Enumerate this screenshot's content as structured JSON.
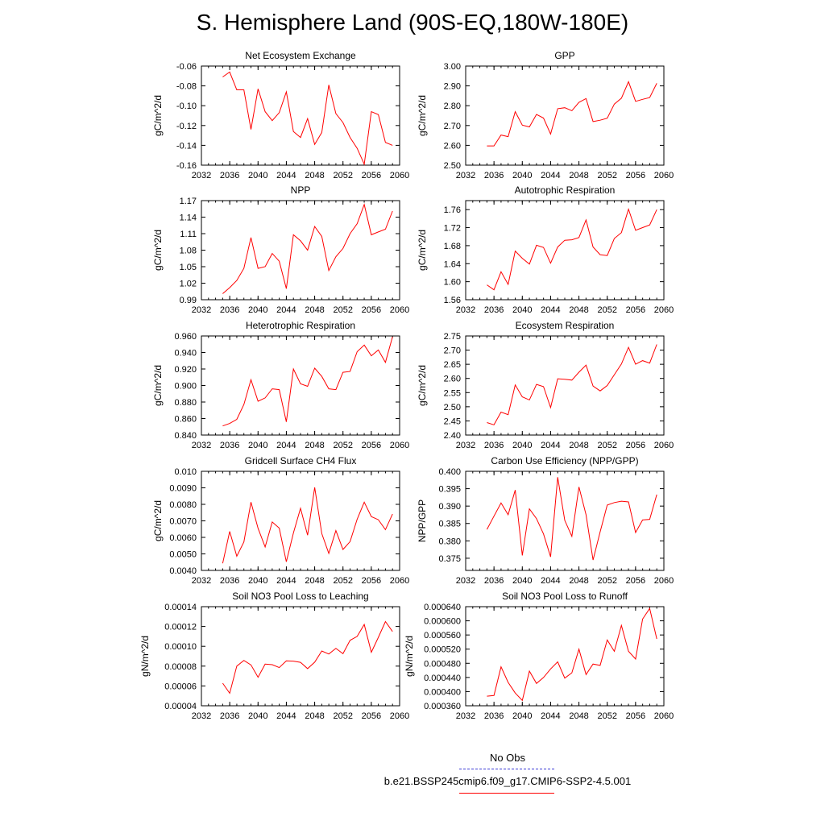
{
  "title": "S. Hemisphere Land (90S-EQ,180W-180E)",
  "legend": {
    "obs_label": "No Obs",
    "obs_color": "#3b3bd6",
    "case_label": "b.e21.BSSP245cmip6.f09_g17.CMIP6-SSP2-4.5.001",
    "case_color": "#ff0000"
  },
  "chart_data": [
    {
      "type": "line",
      "title": "Net Ecosystem Exchange",
      "ylabel": "gC/m^2/d",
      "xlim": [
        2032,
        2060
      ],
      "ylim": [
        -0.16,
        -0.06
      ],
      "xticks": [
        "2032",
        "2036",
        "2040",
        "2044",
        "2048",
        "2052",
        "2056",
        "2060"
      ],
      "yticks": [
        "-0.06",
        "-0.08",
        "-0.10",
        "-0.12",
        "-0.14",
        "-0.16"
      ],
      "x": [
        2035,
        2036,
        2037,
        2038,
        2039,
        2040,
        2041,
        2042,
        2043,
        2044,
        2045,
        2046,
        2047,
        2048,
        2049,
        2050,
        2051,
        2052,
        2053,
        2054,
        2055,
        2056,
        2057,
        2058,
        2059
      ],
      "series": [
        {
          "values": [
            -0.071,
            -0.066,
            -0.084,
            -0.084,
            -0.124,
            -0.083,
            -0.106,
            -0.115,
            -0.107,
            -0.086,
            -0.126,
            -0.132,
            -0.113,
            -0.139,
            -0.127,
            -0.079,
            -0.108,
            -0.117,
            -0.132,
            -0.143,
            -0.159,
            -0.106,
            -0.109,
            -0.137,
            -0.14
          ]
        }
      ]
    },
    {
      "type": "line",
      "title": "GPP",
      "ylabel": "gC/m^2/d",
      "xlim": [
        2032,
        2060
      ],
      "ylim": [
        2.5,
        3.0
      ],
      "xticks": [
        "2032",
        "2036",
        "2040",
        "2044",
        "2048",
        "2052",
        "2056",
        "2060"
      ],
      "yticks": [
        "3.00",
        "2.90",
        "2.80",
        "2.70",
        "2.60",
        "2.50"
      ],
      "x": [
        2035,
        2036,
        2037,
        2038,
        2039,
        2040,
        2041,
        2042,
        2043,
        2044,
        2045,
        2046,
        2047,
        2048,
        2049,
        2050,
        2051,
        2052,
        2053,
        2054,
        2055,
        2056,
        2057,
        2058,
        2059
      ],
      "series": [
        {
          "values": [
            2.597,
            2.597,
            2.652,
            2.644,
            2.77,
            2.702,
            2.693,
            2.756,
            2.738,
            2.657,
            2.785,
            2.79,
            2.775,
            2.817,
            2.836,
            2.72,
            2.727,
            2.737,
            2.808,
            2.838,
            2.921,
            2.822,
            2.832,
            2.841,
            2.913
          ]
        }
      ]
    },
    {
      "type": "line",
      "title": "NPP",
      "ylabel": "gC/m^2/d",
      "xlim": [
        2032,
        2060
      ],
      "ylim": [
        0.99,
        1.17
      ],
      "xticks": [
        "2032",
        "2036",
        "2040",
        "2044",
        "2048",
        "2052",
        "2056",
        "2060"
      ],
      "yticks": [
        "1.17",
        "1.14",
        "1.11",
        "1.08",
        "1.05",
        "1.02",
        "0.99"
      ],
      "x": [
        2035,
        2036,
        2037,
        2038,
        2039,
        2040,
        2041,
        2042,
        2043,
        2044,
        2045,
        2046,
        2047,
        2048,
        2049,
        2050,
        2051,
        2052,
        2053,
        2054,
        2055,
        2056,
        2057,
        2058,
        2059
      ],
      "series": [
        {
          "values": [
            1.001,
            1.012,
            1.025,
            1.047,
            1.103,
            1.047,
            1.05,
            1.074,
            1.06,
            1.01,
            1.108,
            1.097,
            1.08,
            1.123,
            1.105,
            1.043,
            1.068,
            1.083,
            1.11,
            1.128,
            1.163,
            1.108,
            1.113,
            1.118,
            1.151
          ]
        }
      ]
    },
    {
      "type": "line",
      "title": "Autotrophic Respiration",
      "ylabel": "gC/m^2/d",
      "xlim": [
        2032,
        2060
      ],
      "ylim": [
        1.56,
        1.78
      ],
      "xticks": [
        "2032",
        "2036",
        "2040",
        "2044",
        "2048",
        "2052",
        "2056",
        "2060"
      ],
      "yticks": [
        "1.76",
        "1.72",
        "1.68",
        "1.64",
        "1.60",
        "1.56"
      ],
      "x": [
        2035,
        2036,
        2037,
        2038,
        2039,
        2040,
        2041,
        2042,
        2043,
        2044,
        2045,
        2046,
        2047,
        2048,
        2049,
        2050,
        2051,
        2052,
        2053,
        2054,
        2055,
        2056,
        2057,
        2058,
        2059
      ],
      "series": [
        {
          "values": [
            1.593,
            1.582,
            1.622,
            1.594,
            1.668,
            1.652,
            1.639,
            1.681,
            1.676,
            1.641,
            1.677,
            1.692,
            1.693,
            1.698,
            1.737,
            1.677,
            1.66,
            1.658,
            1.696,
            1.709,
            1.761,
            1.714,
            1.72,
            1.726,
            1.76
          ]
        }
      ]
    },
    {
      "type": "line",
      "title": "Heterotrophic Respiration",
      "ylabel": "gC/m^2/d",
      "xlim": [
        2032,
        2060
      ],
      "ylim": [
        0.84,
        0.96
      ],
      "xticks": [
        "2032",
        "2036",
        "2040",
        "2044",
        "2048",
        "2052",
        "2056",
        "2060"
      ],
      "yticks": [
        "0.960",
        "0.940",
        "0.920",
        "0.900",
        "0.880",
        "0.860",
        "0.840"
      ],
      "x": [
        2035,
        2036,
        2037,
        2038,
        2039,
        2040,
        2041,
        2042,
        2043,
        2044,
        2045,
        2046,
        2047,
        2048,
        2049,
        2050,
        2051,
        2052,
        2053,
        2054,
        2055,
        2056,
        2057,
        2058,
        2059
      ],
      "series": [
        {
          "values": [
            0.851,
            0.854,
            0.859,
            0.877,
            0.907,
            0.881,
            0.885,
            0.896,
            0.895,
            0.856,
            0.92,
            0.902,
            0.899,
            0.921,
            0.911,
            0.896,
            0.895,
            0.916,
            0.917,
            0.941,
            0.949,
            0.936,
            0.943,
            0.928,
            0.959
          ]
        }
      ]
    },
    {
      "type": "line",
      "title": "Ecosystem Respiration",
      "ylabel": "gC/m^2/d",
      "xlim": [
        2032,
        2060
      ],
      "ylim": [
        2.4,
        2.75
      ],
      "xticks": [
        "2032",
        "2036",
        "2040",
        "2044",
        "2048",
        "2052",
        "2056",
        "2060"
      ],
      "yticks": [
        "2.75",
        "2.70",
        "2.65",
        "2.60",
        "2.55",
        "2.50",
        "2.45",
        "2.40"
      ],
      "x": [
        2035,
        2036,
        2037,
        2038,
        2039,
        2040,
        2041,
        2042,
        2043,
        2044,
        2045,
        2046,
        2047,
        2048,
        2049,
        2050,
        2051,
        2052,
        2053,
        2054,
        2055,
        2056,
        2057,
        2058,
        2059
      ],
      "series": [
        {
          "values": [
            2.444,
            2.436,
            2.481,
            2.472,
            2.577,
            2.535,
            2.524,
            2.579,
            2.571,
            2.497,
            2.599,
            2.597,
            2.594,
            2.622,
            2.647,
            2.573,
            2.556,
            2.575,
            2.613,
            2.651,
            2.71,
            2.65,
            2.663,
            2.654,
            2.72
          ]
        }
      ]
    },
    {
      "type": "line",
      "title": "Gridcell Surface CH4 Flux",
      "ylabel": "gC/m^2/d",
      "xlim": [
        2032,
        2060
      ],
      "ylim": [
        0.004,
        0.01
      ],
      "xticks": [
        "2032",
        "2036",
        "2040",
        "2044",
        "2048",
        "2052",
        "2056",
        "2060"
      ],
      "yticks": [
        "0.010",
        "0.0090",
        "0.0080",
        "0.0070",
        "0.0060",
        "0.0050",
        "0.0040"
      ],
      "x": [
        2035,
        2036,
        2037,
        2038,
        2039,
        2040,
        2041,
        2042,
        2043,
        2044,
        2045,
        2046,
        2047,
        2048,
        2049,
        2050,
        2051,
        2052,
        2053,
        2054,
        2055,
        2056,
        2057,
        2058,
        2059
      ],
      "series": [
        {
          "values": [
            0.00443,
            0.00636,
            0.00486,
            0.00572,
            0.00813,
            0.00655,
            0.00542,
            0.00693,
            0.00656,
            0.00452,
            0.00627,
            0.00776,
            0.00613,
            0.00903,
            0.00623,
            0.00503,
            0.00641,
            0.00527,
            0.00574,
            0.0071,
            0.00813,
            0.00726,
            0.00707,
            0.00647,
            0.00741
          ]
        }
      ]
    },
    {
      "type": "line",
      "title": "Carbon Use Efficiency (NPP/GPP)",
      "ylabel": "NPP/GPP",
      "xlim": [
        2032,
        2060
      ],
      "ylim": [
        0.3715,
        0.4
      ],
      "xticks": [
        "2032",
        "2036",
        "2040",
        "2044",
        "2048",
        "2052",
        "2056",
        "2060"
      ],
      "yticks": [
        "0.400",
        "0.395",
        "0.390",
        "0.385",
        "0.380",
        "0.375"
      ],
      "x": [
        2035,
        2036,
        2037,
        2038,
        2039,
        2040,
        2041,
        2042,
        2043,
        2044,
        2045,
        2046,
        2047,
        2048,
        2049,
        2050,
        2051,
        2052,
        2053,
        2054,
        2055,
        2056,
        2057,
        2058,
        2059
      ],
      "series": [
        {
          "values": [
            0.3833,
            0.3871,
            0.3909,
            0.3875,
            0.3946,
            0.3758,
            0.3892,
            0.3864,
            0.382,
            0.3754,
            0.3983,
            0.3859,
            0.3813,
            0.3955,
            0.3875,
            0.3745,
            0.3826,
            0.3903,
            0.391,
            0.3914,
            0.3912,
            0.3824,
            0.386,
            0.3862,
            0.3933
          ]
        }
      ]
    },
    {
      "type": "line",
      "title": "Soil NO3 Pool Loss to Leaching",
      "ylabel": "gN/m^2/d",
      "xlim": [
        2032,
        2060
      ],
      "ylim": [
        4e-05,
        0.00014
      ],
      "xticks": [
        "2032",
        "2036",
        "2040",
        "2044",
        "2048",
        "2052",
        "2056",
        "2060"
      ],
      "yticks": [
        "0.00014",
        "0.00012",
        "0.00010",
        "0.00008",
        "0.00006",
        "0.00004"
      ],
      "x": [
        2035,
        2036,
        2037,
        2038,
        2039,
        2040,
        2041,
        2042,
        2043,
        2044,
        2045,
        2046,
        2047,
        2048,
        2049,
        2050,
        2051,
        2052,
        2053,
        2054,
        2055,
        2056,
        2057,
        2058,
        2059
      ],
      "series": [
        {
          "values": [
            6.28e-05,
            5.26e-05,
            8e-05,
            8.58e-05,
            8.12e-05,
            6.88e-05,
            8.2e-05,
            8.15e-05,
            7.85e-05,
            8.53e-05,
            8.5e-05,
            8.38e-05,
            7.75e-05,
            8.4e-05,
            9.53e-05,
            9.22e-05,
            9.8e-05,
            9.25e-05,
            0.000106,
            0.00011,
            0.000122,
            9.4e-05,
            0.000109,
            0.000125,
            0.000115
          ]
        }
      ]
    },
    {
      "type": "line",
      "title": "Soil NO3 Pool Loss to Runoff",
      "ylabel": "gN/m^2/d",
      "xlim": [
        2032,
        2060
      ],
      "ylim": [
        0.00036,
        0.00064
      ],
      "xticks": [
        "2032",
        "2036",
        "2040",
        "2044",
        "2048",
        "2052",
        "2056",
        "2060"
      ],
      "yticks": [
        "0.000640",
        "0.000600",
        "0.000560",
        "0.000520",
        "0.000480",
        "0.000440",
        "0.000400",
        "0.000360"
      ],
      "x": [
        2035,
        2036,
        2037,
        2038,
        2039,
        2040,
        2041,
        2042,
        2043,
        2044,
        2045,
        2046,
        2047,
        2048,
        2049,
        2050,
        2051,
        2052,
        2053,
        2054,
        2055,
        2056,
        2057,
        2058,
        2059
      ],
      "series": [
        {
          "values": [
            0.000387,
            0.000389,
            0.00047,
            0.000426,
            0.000396,
            0.000375,
            0.000458,
            0.000423,
            0.00044,
            0.000464,
            0.000484,
            0.000438,
            0.000453,
            0.00052,
            0.000448,
            0.000478,
            0.000474,
            0.000546,
            0.000514,
            0.000587,
            0.000514,
            0.000492,
            0.000605,
            0.000635,
            0.000549
          ]
        }
      ]
    }
  ]
}
